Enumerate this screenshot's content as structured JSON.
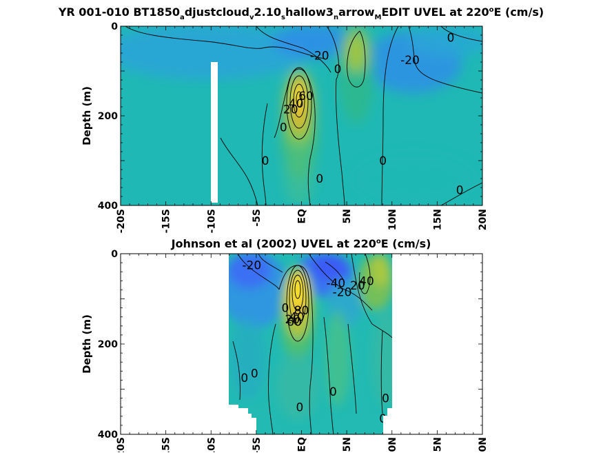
{
  "chart_data": [
    {
      "type": "heatmap",
      "title_parts": [
        "YR 001-010 BT1850",
        "a",
        "djustcloud",
        "v",
        "2.10",
        "s",
        "hallow3",
        "n",
        "arrow",
        "M",
        "EDIT UVEL at 220",
        "o",
        "E (cm/s)"
      ],
      "title_styles": [
        "normal",
        "sub",
        "normal",
        "sub",
        "normal",
        "sub",
        "normal",
        "sub",
        "normal",
        "sub",
        "normal",
        "sup",
        "normal"
      ],
      "variable": "UVEL",
      "units": "cm/s",
      "ylabel": "Depth (m)",
      "x_ticks": [
        "-20S",
        "-15S",
        "-10S",
        "-5S",
        "EQ",
        "5N",
        "10N",
        "15N",
        "20N"
      ],
      "x_tick_values": [
        -20,
        -15,
        -10,
        -5,
        0,
        5,
        10,
        15,
        20
      ],
      "y_ticks": [
        "0",
        "200",
        "400"
      ],
      "y_tick_values": [
        0,
        200,
        400
      ],
      "xlim": [
        -20,
        20
      ],
      "ylim": [
        0,
        400
      ],
      "y_reversed": true,
      "masked_regions": [
        {
          "x": [
            -10,
            -9.2
          ],
          "depth": [
            80,
            400
          ]
        }
      ],
      "features": [
        {
          "name": "core",
          "lat": 0,
          "depth": 160,
          "value": 80
        },
        {
          "name": "north-jet",
          "lat": 6.2,
          "depth": 80,
          "value": 25
        },
        {
          "name": "south-flow",
          "lat": -3,
          "depth": 30,
          "value": -25
        },
        {
          "name": "north-flow",
          "lat": 12,
          "depth": 60,
          "value": -28
        }
      ],
      "contour_labels": [
        {
          "text": "-20",
          "lat": 2.0,
          "depth": 65
        },
        {
          "text": "0",
          "lat": 4.0,
          "depth": 95
        },
        {
          "text": "-20",
          "lat": 12.0,
          "depth": 75
        },
        {
          "text": "0",
          "lat": 16.5,
          "depth": 25
        },
        {
          "text": "60",
          "lat": 0.5,
          "depth": 155
        },
        {
          "text": "40",
          "lat": -0.6,
          "depth": 172
        },
        {
          "text": "20",
          "lat": -1.2,
          "depth": 185
        },
        {
          "text": "0",
          "lat": -2.0,
          "depth": 225
        },
        {
          "text": "0",
          "lat": -4.0,
          "depth": 300
        },
        {
          "text": "0",
          "lat": 2.0,
          "depth": 340
        },
        {
          "text": "0",
          "lat": 9.0,
          "depth": 300
        },
        {
          "text": "0",
          "lat": 17.5,
          "depth": 365
        }
      ]
    },
    {
      "type": "heatmap",
      "title_parts": [
        "Johnson et al (2002) UVEL at 220",
        "o",
        "E (cm/s)"
      ],
      "title_styles": [
        "normal",
        "sup",
        "normal"
      ],
      "variable": "UVEL",
      "units": "cm/s",
      "ylabel": "Depth (m)",
      "x_ticks": [
        "-20S",
        "-15S",
        "-10S",
        "-5S",
        "EQ",
        "5N",
        "10N",
        "15N",
        "20N"
      ],
      "x_tick_values": [
        -20,
        -15,
        -10,
        -5,
        0,
        5,
        10,
        15,
        20
      ],
      "y_ticks": [
        "0",
        "200",
        "400"
      ],
      "y_tick_values": [
        0,
        200,
        400
      ],
      "xlim": [
        -20,
        20
      ],
      "ylim": [
        0,
        400
      ],
      "y_reversed": true,
      "data_extent_lat": [
        -8,
        10
      ],
      "features": [
        {
          "name": "core",
          "lat": 0,
          "depth": 110,
          "value": 90
        },
        {
          "name": "north-jet",
          "lat": 7.5,
          "depth": 40,
          "value": 40
        },
        {
          "name": "south-flow",
          "lat": -5,
          "depth": 60,
          "value": -30
        },
        {
          "name": "north-flow",
          "lat": 3,
          "depth": 35,
          "value": -45
        }
      ],
      "contour_labels": [
        {
          "text": "-20",
          "lat": -5.5,
          "depth": 25
        },
        {
          "text": "-40",
          "lat": 3.8,
          "depth": 65
        },
        {
          "text": "-20",
          "lat": 4.5,
          "depth": 85
        },
        {
          "text": "20",
          "lat": 6.2,
          "depth": 70
        },
        {
          "text": "40",
          "lat": 7.2,
          "depth": 60
        },
        {
          "text": "0",
          "lat": -1.8,
          "depth": 120
        },
        {
          "text": "20",
          "lat": -1.0,
          "depth": 145
        },
        {
          "text": "40",
          "lat": -0.5,
          "depth": 140
        },
        {
          "text": "60",
          "lat": -0.8,
          "depth": 150
        },
        {
          "text": "80",
          "lat": 0.0,
          "depth": 125
        },
        {
          "text": "0",
          "lat": -6.3,
          "depth": 275
        },
        {
          "text": "0",
          "lat": -5.2,
          "depth": 265
        },
        {
          "text": "0",
          "lat": 3.5,
          "depth": 305
        },
        {
          "text": "0",
          "lat": -0.2,
          "depth": 340
        },
        {
          "text": "0",
          "lat": 9.3,
          "depth": 320
        },
        {
          "text": "0",
          "lat": 9.0,
          "depth": 365
        }
      ]
    }
  ]
}
